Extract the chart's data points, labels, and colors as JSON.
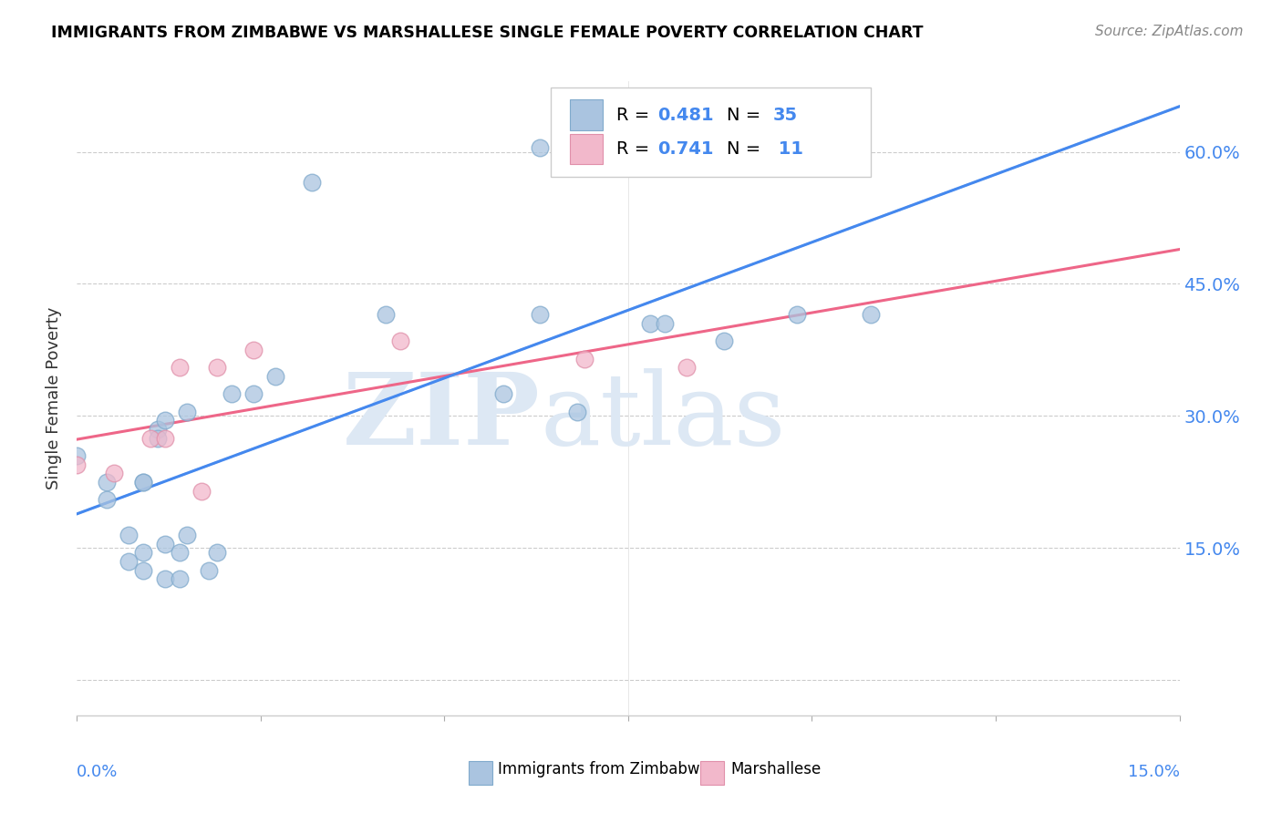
{
  "title": "IMMIGRANTS FROM ZIMBABWE VS MARSHALLESE SINGLE FEMALE POVERTY CORRELATION CHART",
  "source": "Source: ZipAtlas.com",
  "ylabel": "Single Female Poverty",
  "yticks": [
    0.0,
    0.15,
    0.3,
    0.45,
    0.6
  ],
  "ytick_labels": [
    "",
    "15.0%",
    "30.0%",
    "45.0%",
    "60.0%"
  ],
  "xlim": [
    0.0,
    0.15
  ],
  "ylim": [
    -0.04,
    0.68
  ],
  "blue_color": "#aac4e0",
  "blue_edge_color": "#80aacc",
  "pink_color": "#f2b8cb",
  "pink_edge_color": "#e090aa",
  "blue_line_color": "#4488ee",
  "pink_line_color": "#ee6688",
  "blue_dash_color": "#bbccee",
  "zimbabwe_x": [
    0.0,
    0.004,
    0.004,
    0.007,
    0.007,
    0.009,
    0.009,
    0.009,
    0.009,
    0.011,
    0.011,
    0.012,
    0.012,
    0.012,
    0.014,
    0.014,
    0.015,
    0.015,
    0.018,
    0.019,
    0.021,
    0.024,
    0.027,
    0.032,
    0.042,
    0.058,
    0.063,
    0.063,
    0.066,
    0.068,
    0.078,
    0.08,
    0.088,
    0.098,
    0.108
  ],
  "zimbabwe_y": [
    0.255,
    0.225,
    0.205,
    0.135,
    0.165,
    0.225,
    0.225,
    0.145,
    0.125,
    0.285,
    0.275,
    0.115,
    0.155,
    0.295,
    0.115,
    0.145,
    0.305,
    0.165,
    0.125,
    0.145,
    0.325,
    0.325,
    0.345,
    0.565,
    0.415,
    0.325,
    0.415,
    0.605,
    0.605,
    0.305,
    0.405,
    0.405,
    0.385,
    0.415,
    0.415
  ],
  "marshallese_x": [
    0.0,
    0.005,
    0.01,
    0.012,
    0.014,
    0.017,
    0.019,
    0.024,
    0.044,
    0.069,
    0.083
  ],
  "marshallese_y": [
    0.245,
    0.235,
    0.275,
    0.275,
    0.355,
    0.215,
    0.355,
    0.375,
    0.385,
    0.365,
    0.355
  ]
}
